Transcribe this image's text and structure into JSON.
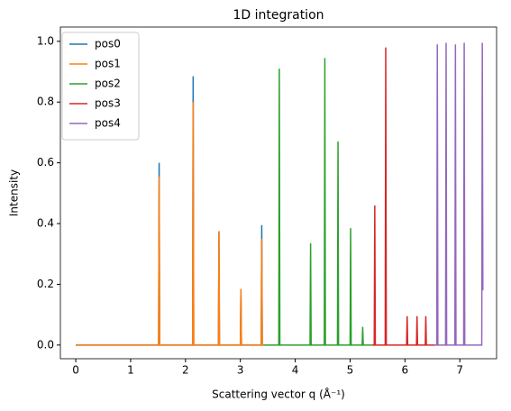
{
  "chart_data": {
    "type": "line",
    "title": "1D integration",
    "xlabel": "Scattering vector q (Å⁻¹)",
    "ylabel": "Intensity",
    "xlim": [
      -0.28,
      7.67
    ],
    "ylim": [
      -0.045,
      1.047
    ],
    "xticks": [
      0,
      1,
      2,
      3,
      4,
      5,
      6,
      7
    ],
    "yticks": [
      {
        "value": 0,
        "label": "0.0"
      },
      0.2,
      0.4,
      0.6,
      0.8,
      {
        "value": 1,
        "label": "1.0"
      }
    ],
    "legend": "upper left",
    "series": [
      {
        "name": "pos0",
        "color": "#1f77b4",
        "x": [
          0,
          1.51,
          1.52,
          1.53,
          2.13,
          2.14,
          2.15,
          2.6,
          2.61,
          2.62,
          3.0,
          3.01,
          3.02,
          3.38,
          3.39,
          3.4,
          3.42
        ],
        "values": [
          0,
          0,
          0.6,
          0,
          0,
          0.885,
          0,
          0,
          0.375,
          0,
          0,
          0.185,
          0,
          0,
          0.395,
          0,
          0
        ]
      },
      {
        "name": "pos1",
        "color": "#ff7f0e",
        "x": [
          0,
          1.51,
          1.52,
          1.53,
          2.13,
          2.14,
          2.15,
          2.6,
          2.61,
          2.62,
          3.0,
          3.01,
          3.02,
          3.38,
          3.39,
          3.4,
          3.42
        ],
        "values": [
          0,
          0,
          0.555,
          0,
          0,
          0.8,
          0,
          0,
          0.375,
          0,
          0,
          0.185,
          0,
          0,
          0.35,
          0,
          0
        ]
      },
      {
        "name": "pos2",
        "color": "#2ca02c",
        "x": [
          3.42,
          3.7,
          3.71,
          3.72,
          4.27,
          4.28,
          4.29,
          4.53,
          4.54,
          4.55,
          4.77,
          4.78,
          4.79,
          5.0,
          5.01,
          5.02,
          5.22,
          5.23,
          5.24,
          5.4
        ],
        "values": [
          0,
          0,
          0.91,
          0,
          0,
          0.335,
          0,
          0,
          0.945,
          0,
          0,
          0.67,
          0,
          0,
          0.385,
          0,
          0,
          0.06,
          0,
          0
        ]
      },
      {
        "name": "pos3",
        "color": "#d62728",
        "x": [
          5.4,
          5.44,
          5.45,
          5.46,
          5.64,
          5.65,
          5.66,
          6.03,
          6.04,
          6.05,
          6.21,
          6.22,
          6.23,
          6.37,
          6.38,
          6.39,
          6.55
        ],
        "values": [
          0,
          0,
          0.46,
          0,
          0,
          0.98,
          0,
          0,
          0.095,
          0,
          0,
          0.095,
          0,
          0,
          0.095,
          0,
          0
        ]
      },
      {
        "name": "pos4",
        "color": "#9467bd",
        "x": [
          6.55,
          6.58,
          6.59,
          6.6,
          6.74,
          6.75,
          6.76,
          6.91,
          6.92,
          6.93,
          7.07,
          7.08,
          7.09,
          7.4,
          7.41,
          7.42
        ],
        "values": [
          0,
          0,
          0.99,
          0,
          0,
          0.995,
          0,
          0,
          0.99,
          0,
          0,
          0.995,
          0,
          0,
          0.995,
          0.18
        ]
      }
    ]
  }
}
